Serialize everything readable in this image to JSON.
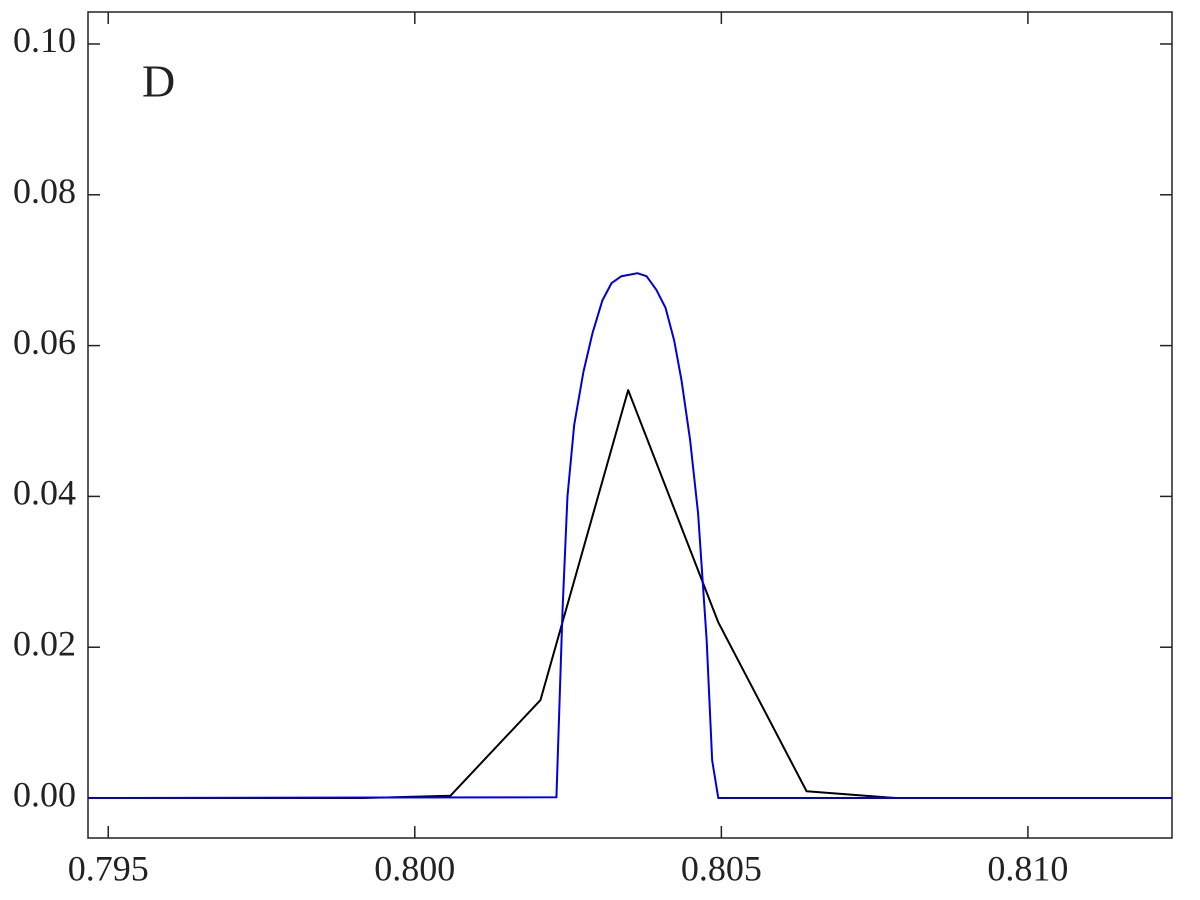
{
  "chart_data": {
    "type": "line",
    "annotations": [
      "D"
    ],
    "xlim": [
      0.79467,
      0.81235
    ],
    "ylim": [
      -0.0053,
      0.10424
    ],
    "xticks": [
      0.795,
      {
        "value": 0.8,
        "label": "0.800"
      },
      0.805,
      {
        "value": 0.81,
        "label": "0.810"
      }
    ],
    "yticks": [
      {
        "value": 0,
        "label": "0.00"
      },
      {
        "value": 0.02,
        "label": "0.02"
      },
      {
        "value": 0.04,
        "label": "0.04"
      },
      {
        "value": 0.06,
        "label": "0.06"
      },
      {
        "value": 0.08,
        "label": "0.08"
      },
      {
        "value": 0.1,
        "label": "0.10"
      }
    ],
    "grid": false,
    "series": [
      {
        "color": "#000000",
        "x": [
          0.79467,
          0.79916,
          0.80058,
          0.80205,
          0.80348,
          0.80495,
          0.80639,
          0.80784,
          0.81235
        ],
        "values": [
          0,
          0,
          0.0003,
          0.013,
          0.0541,
          0.0233,
          0.0009,
          0,
          0
        ]
      },
      {
        "color": "#0000dd",
        "x": [
          0.79467,
          0.80231,
          0.80241,
          0.80249,
          0.8026,
          0.80275,
          0.8029,
          0.80306,
          0.80321,
          0.80337,
          0.80363,
          0.80378,
          0.80394,
          0.80409,
          0.80423,
          0.80435,
          0.80449,
          0.80462,
          0.80476,
          0.80485,
          0.80495,
          0.81235
        ],
        "values": [
          0,
          0.0001,
          0.025,
          0.04,
          0.0495,
          0.0565,
          0.0617,
          0.066,
          0.0683,
          0.0692,
          0.0696,
          0.0692,
          0.0674,
          0.065,
          0.0607,
          0.0554,
          0.0475,
          0.0378,
          0.021,
          0.005,
          0,
          0
        ]
      }
    ]
  }
}
